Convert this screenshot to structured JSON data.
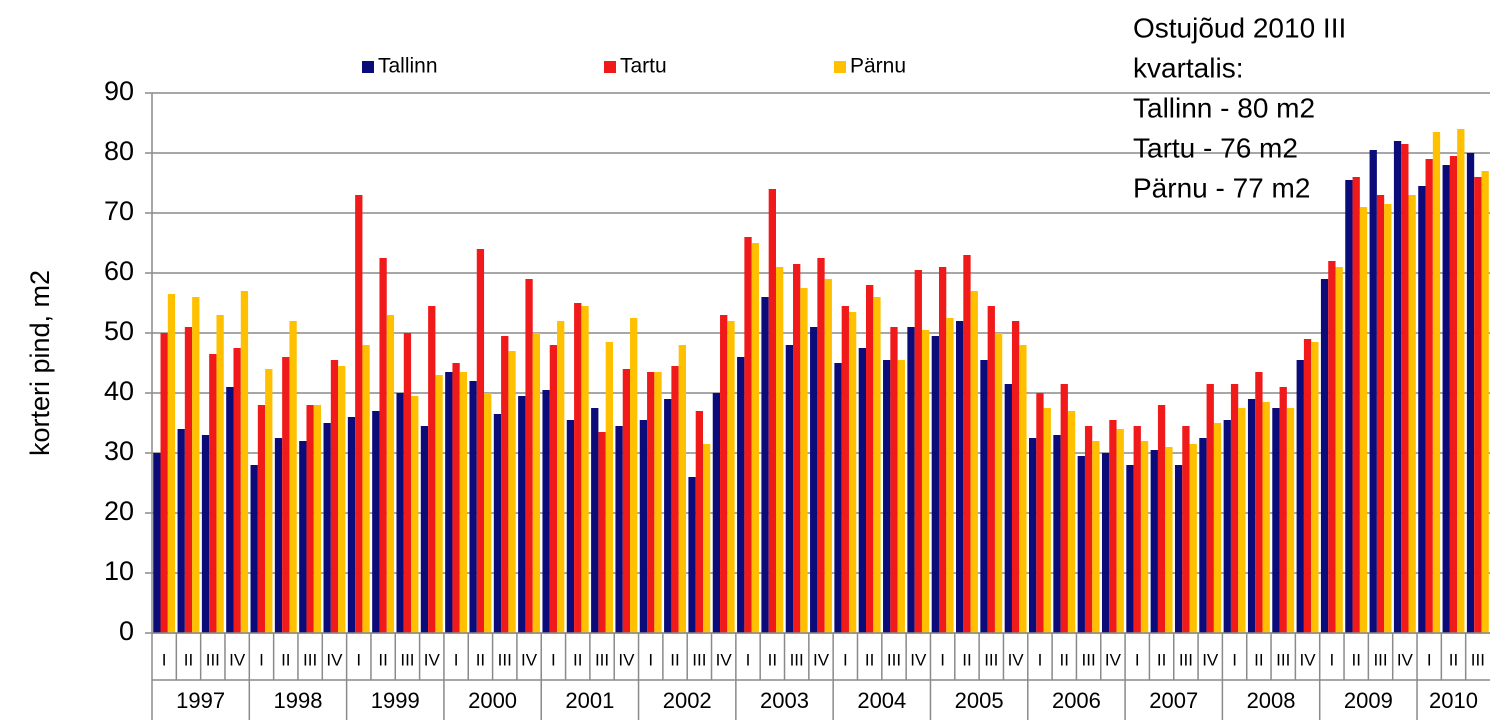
{
  "chart_data": {
    "type": "bar",
    "y_label": "korteri pind, m2",
    "annotations": [
      "Ostujõud 2010 III",
      "kvartalis:",
      "Tallinn - 80 m2",
      "Tartu - 76 m2",
      "Pärnu - 77 m2"
    ],
    "categories": [
      "I",
      "II",
      "III",
      "IV",
      "I",
      "II",
      "III",
      "IV",
      "I",
      "II",
      "III",
      "IV",
      "I",
      "II",
      "III",
      "IV",
      "I",
      "II",
      "III",
      "IV",
      "I",
      "II",
      "III",
      "IV",
      "I",
      "II",
      "III",
      "IV",
      "I",
      "II",
      "III",
      "IV",
      "I",
      "II",
      "III",
      "IV",
      "I",
      "II",
      "III",
      "IV",
      "I",
      "II",
      "III",
      "IV",
      "I",
      "II",
      "III",
      "IV",
      "I",
      "II",
      "III",
      "IV",
      "I",
      "II",
      "III"
    ],
    "years": [
      "1997",
      "1998",
      "1999",
      "2000",
      "2001",
      "2002",
      "2003",
      "2004",
      "2005",
      "2006",
      "2007",
      "2008",
      "2009",
      "2010"
    ],
    "series": [
      {
        "name": "Tallinn",
        "color": "#0b0b7a",
        "values": [
          30,
          34,
          33,
          41,
          28,
          32.5,
          32,
          35,
          36,
          37,
          40,
          34.5,
          43.5,
          42,
          36.5,
          39.5,
          40.5,
          35.5,
          37.5,
          34.5,
          35.5,
          39,
          26,
          40,
          46,
          56,
          48,
          51,
          45,
          47.5,
          45.5,
          51,
          49.5,
          52,
          45.5,
          41.5,
          32.5,
          33,
          29.5,
          30,
          28,
          30.5,
          28,
          32.5,
          35.5,
          39,
          37.5,
          45.5,
          59,
          75.5,
          80.5,
          82,
          74.5,
          78,
          80
        ]
      },
      {
        "name": "Tartu",
        "color": "#f01a1a",
        "values": [
          50,
          51,
          46.5,
          47.5,
          38,
          46,
          38,
          45.5,
          73,
          62.5,
          50,
          54.5,
          45,
          64,
          49.5,
          59,
          48,
          55,
          33.5,
          44,
          43.5,
          44.5,
          37,
          53,
          66,
          74,
          61.5,
          62.5,
          54.5,
          58,
          51,
          60.5,
          61,
          63,
          54.5,
          52,
          40,
          41.5,
          34.5,
          35.5,
          34.5,
          38,
          34.5,
          41.5,
          41.5,
          43.5,
          41,
          49,
          62,
          76,
          73,
          81.5,
          79,
          79.5,
          76
        ]
      },
      {
        "name": "Pärnu",
        "color": "#ffc000",
        "values": [
          56.5,
          56,
          53,
          57,
          44,
          52,
          38,
          44.5,
          48,
          53,
          39.5,
          43,
          43.5,
          40,
          47,
          50,
          52,
          54.5,
          48.5,
          52.5,
          43.5,
          48,
          31.5,
          52,
          65,
          61,
          57.5,
          59,
          53.5,
          56,
          45.5,
          50.5,
          52.5,
          57,
          50,
          48,
          37.5,
          37,
          32,
          34,
          32,
          31,
          31.5,
          35,
          37.5,
          38.5,
          37.5,
          48.5,
          61,
          71,
          71.5,
          73,
          83.5,
          84,
          77
        ]
      }
    ],
    "ylim": [
      0,
      90
    ],
    "yticks": [
      0,
      10,
      20,
      30,
      40,
      50,
      60,
      70,
      80,
      90
    ],
    "grid": true
  }
}
